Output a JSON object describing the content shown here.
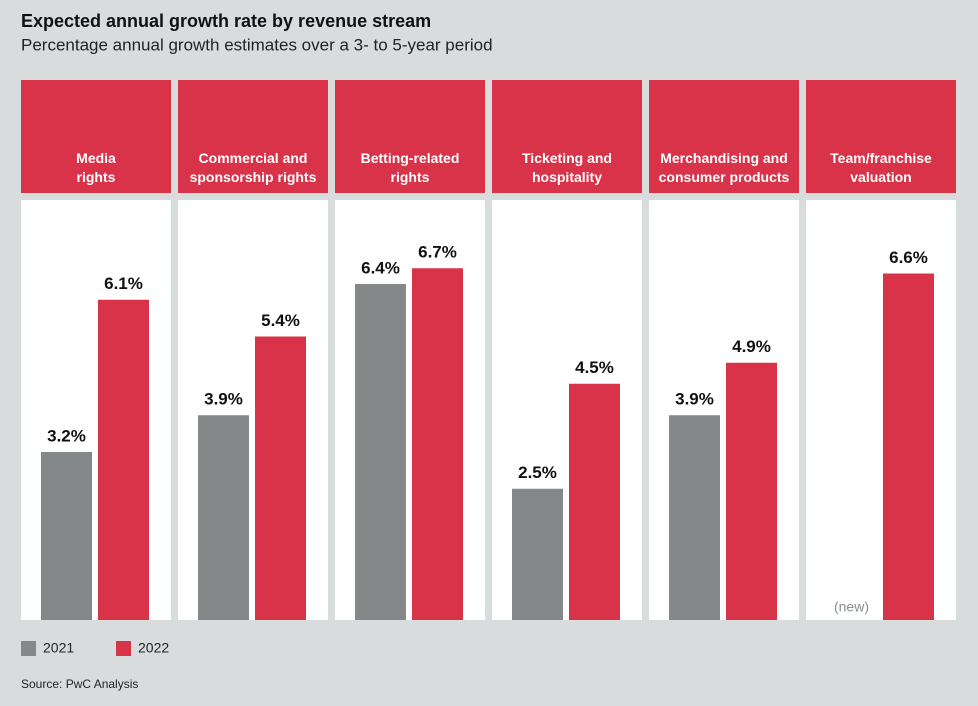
{
  "chart_data": {
    "type": "bar",
    "title": "Expected annual growth rate by revenue stream",
    "subtitle": "Percentage annual growth estimates over a 3- to 5-year period",
    "categories": [
      "Media\nrights",
      "Commercial and\nsponsorship rights",
      "Betting-related\nrights",
      "Ticketing and\nhospitality",
      "Merchandising and\nconsumer products",
      "Team/franchise\nvaluation"
    ],
    "series": [
      {
        "name": "2021",
        "color": "#858889",
        "values": [
          3.2,
          3.9,
          6.4,
          2.5,
          3.9,
          null
        ],
        "value_labels": [
          "3.2%",
          "3.9%",
          "6.4%",
          "2.5%",
          "3.9%",
          "(new)"
        ]
      },
      {
        "name": "2022",
        "color": "#d9334a",
        "values": [
          6.1,
          5.4,
          6.7,
          4.5,
          4.9,
          6.6
        ],
        "value_labels": [
          "6.1%",
          "5.4%",
          "6.7%",
          "4.5%",
          "4.9%",
          "6.6%"
        ]
      }
    ],
    "ylim": [
      0,
      8
    ],
    "header_color": "#d9334a",
    "source": "Source: PwC Analysis"
  }
}
